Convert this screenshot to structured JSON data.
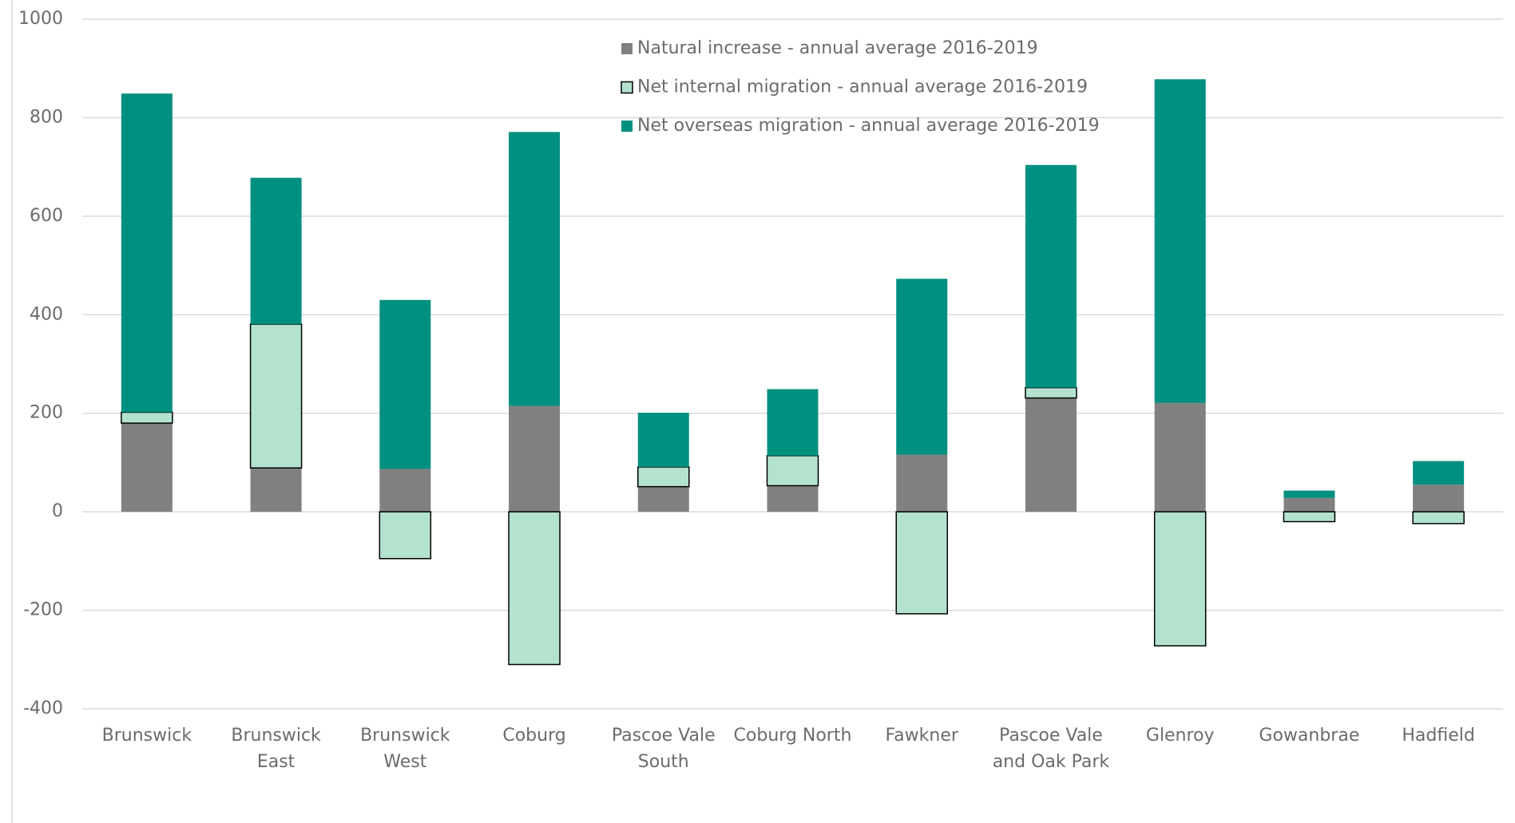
{
  "chart_data": {
    "type": "stacked_bar",
    "categories": [
      "Brunswick",
      "Brunswick East",
      "Brunswick West",
      "Coburg",
      "Pascoe Vale South",
      "Coburg North",
      "Fawkner",
      "Pascoe Vale and Oak Park",
      "Glenroy",
      "Gowanbrae",
      "Hadfield"
    ],
    "series": [
      {
        "name": "Natural increase - annual average 2016-2019",
        "color": "#808080",
        "values": [
          180,
          89,
          87,
          215,
          51,
          53,
          116,
          231,
          221,
          28,
          55
        ]
      },
      {
        "name": "Net internal migration - annual average 2016-2019",
        "color": "#b3e3cf",
        "stroke": "#000000",
        "values": [
          22,
          292,
          -95,
          -310,
          40,
          61,
          -207,
          21,
          -272,
          -20,
          -24
        ]
      },
      {
        "name": "Net overseas migration - annual average 2016-2019",
        "color": "#009080",
        "values": [
          647,
          297,
          343,
          556,
          110,
          135,
          357,
          452,
          657,
          15,
          48
        ]
      }
    ],
    "ylim": [
      -400,
      1000
    ],
    "yticks": [
      -400,
      -200,
      0,
      200,
      400,
      600,
      800,
      1000
    ],
    "grid": true
  }
}
